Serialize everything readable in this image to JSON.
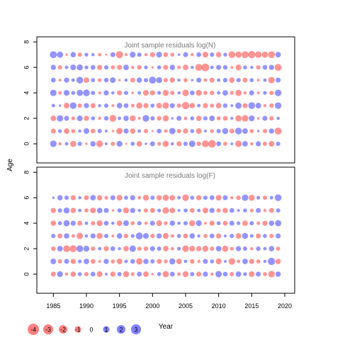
{
  "chart_data": [
    {
      "type": "scatter",
      "title": "Joint sample residuals log(N)",
      "xlabel": "Year",
      "ylabel": "Age",
      "xlim": [
        1982.5,
        2021.5
      ],
      "ylim": [
        -1.5,
        8.4
      ],
      "x_ticks": [
        "1985",
        "1990",
        "1995",
        "2000",
        "2005",
        "2010",
        "2015",
        "2020"
      ],
      "y_ticks": [
        "0",
        "2",
        "4",
        "6",
        "8"
      ],
      "x_range": [
        1985,
        2019
      ],
      "ages": [
        0,
        1,
        2,
        3,
        4,
        5,
        6,
        7
      ],
      "residuals": [
        [
          2.1,
          -0.5,
          0.6,
          -1.8,
          0.9,
          -0.3,
          1.4,
          -2.2,
          0.4,
          -0.9,
          1.7,
          -0.2,
          0.8,
          -1.5,
          0.3,
          1.2,
          -0.7,
          -1.9,
          0.5,
          -1.2,
          0.9,
          2.0,
          -1.0,
          -2.3,
          -2.8,
          1.1,
          -0.8,
          0.4,
          -2.1,
          1.5,
          -0.5,
          1.3,
          -0.9,
          -1.6,
          0.9
        ],
        [
          -1.2,
          0.7,
          -1.5,
          -0.8,
          0.5,
          1.6,
          -1.1,
          0.9,
          0.4,
          -0.3,
          -2.0,
          1.3,
          -1.4,
          0.6,
          -0.9,
          -0.2,
          1.1,
          -0.6,
          2.0,
          -0.9,
          -1.3,
          0.8,
          -1.6,
          0.4,
          -0.7,
          0.9,
          1.8,
          -1.2,
          2.2,
          1.5,
          -0.8,
          0.3,
          -0.9,
          1.3,
          -2.4
        ],
        [
          -1.5,
          2.0,
          1.2,
          -0.7,
          1.6,
          -1.3,
          0.8,
          -0.5,
          1.0,
          -2.3,
          0.6,
          1.4,
          -1.7,
          -0.4,
          2.2,
          0.9,
          -1.0,
          -1.8,
          0.3,
          1.2,
          -0.6,
          0.8,
          -1.4,
          0.9,
          1.5,
          -0.8,
          -1.1,
          0.4,
          -1.9,
          -2.1,
          1.7,
          -0.3,
          1.2,
          -0.9,
          0.5
        ],
        [
          0.6,
          0.3,
          -1.6,
          2.1,
          -0.9,
          1.3,
          -1.2,
          0.5,
          0.9,
          -0.4,
          1.5,
          1.1,
          -0.7,
          -1.8,
          -1.3,
          0.8,
          -1.5,
          -2.0,
          1.2,
          -0.9,
          -2.6,
          -1.4,
          0.6,
          -1.3,
          -0.8,
          -1.5,
          1.0,
          0.4,
          1.9,
          -1.2,
          2.3,
          1.6,
          -0.5,
          -1.0,
          2.1
        ],
        [
          2.0,
          -0.6,
          1.7,
          0.8,
          1.9,
          2.2,
          0.9,
          -0.4,
          1.3,
          0.5,
          -1.2,
          0.9,
          -0.3,
          0.6,
          -1.6,
          -1.3,
          0.7,
          -1.8,
          -0.9,
          0.5,
          -2.1,
          1.1,
          -1.7,
          -0.8,
          -1.0,
          0.6,
          1.5,
          -0.7,
          -1.9,
          -0.5,
          1.2,
          -0.4,
          0.7,
          -0.9,
          2.1
        ],
        [
          1.1,
          -0.4,
          1.3,
          0.6,
          2.2,
          -1.5,
          0.8,
          -0.7,
          1.0,
          1.6,
          -0.3,
          0.5,
          -1.1,
          1.4,
          0.9,
          2.4,
          1.8,
          -0.9,
          -1.3,
          0.5,
          -0.8,
          0.3,
          1.2,
          -0.6,
          -1.2,
          0.6,
          1.0,
          -1.5,
          0.9,
          -1.1,
          0.8,
          -0.4,
          0.6,
          -2.0,
          1.2
        ],
        [
          1.3,
          -0.9,
          0.6,
          1.6,
          1.8,
          0.7,
          1.1,
          -1.3,
          0.9,
          -0.8,
          -1.2,
          1.5,
          -0.5,
          -1.0,
          0.7,
          -0.3,
          0.8,
          -1.2,
          1.4,
          -0.6,
          -1.5,
          0.5,
          -2.4,
          -2.9,
          0.6,
          1.2,
          1.0,
          -0.4,
          -1.7,
          0.8,
          0.5,
          -0.9,
          1.1,
          1.3,
          -2.3
        ],
        [
          2.4,
          1.9,
          -0.3,
          1.4,
          -0.9,
          0.7,
          0.5,
          -0.6,
          -0.2,
          1.2,
          -2.5,
          -0.4,
          1.7,
          0.9,
          -0.5,
          -1.3,
          1.6,
          -1.1,
          -0.8,
          0.3,
          1.2,
          -0.5,
          1.1,
          -1.7,
          0.9,
          -1.4,
          0.7,
          -2.2,
          -1.9,
          -2.4,
          -2.6,
          -2.1,
          -1.8,
          -2.3,
          1.5
        ]
      ]
    },
    {
      "type": "scatter",
      "title": "Joint sample residuals log(F)",
      "xlabel": "Year",
      "ylabel": "Age",
      "xlim": [
        1982.5,
        2021.5
      ],
      "ylim": [
        -1.5,
        8.4
      ],
      "x_ticks": [
        "1985",
        "1990",
        "1995",
        "2000",
        "2005",
        "2010",
        "2015",
        "2020"
      ],
      "y_ticks": [
        "0",
        "2",
        "4",
        "6",
        "8"
      ],
      "x_range": [
        1985,
        2019
      ],
      "ages": [
        0,
        1,
        2,
        3,
        4,
        5,
        6
      ],
      "residuals": [
        [
          -1.2,
          1.7,
          -0.5,
          -1.4,
          0.8,
          -0.9,
          1.1,
          -1.6,
          0.4,
          -1.3,
          0.9,
          -1.8,
          -0.7,
          1.2,
          -1.5,
          -0.3,
          0.8,
          -1.9,
          1.1,
          -0.6,
          -1.7,
          0.9,
          -1.2,
          1.3,
          -0.5,
          2.0,
          1.1,
          -0.9,
          1.5,
          0.7,
          -1.6,
          1.2,
          -0.8,
          -2.1,
          1.4
        ],
        [
          1.6,
          -0.9,
          1.2,
          -1.3,
          0.7,
          1.5,
          -1.1,
          -0.4,
          1.3,
          -0.8,
          -1.6,
          0.6,
          1.1,
          -2.0,
          1.4,
          0.9,
          -1.2,
          -0.7,
          1.8,
          -1.5,
          0.6,
          -1.0,
          -0.5,
          1.2,
          0.8,
          -1.7,
          0.4,
          -2.1,
          -0.6,
          1.5,
          -1.3,
          -0.8,
          0.5,
          2.6,
          -1.4
        ],
        [
          -1.0,
          1.5,
          -2.3,
          -2.4,
          2.2,
          1.7,
          -0.9,
          0.6,
          -1.3,
          1.1,
          0.5,
          -1.4,
          2.0,
          -0.8,
          -1.0,
          1.2,
          0.9,
          -1.5,
          -0.6,
          0.7,
          -2.1,
          -1.6,
          -1.3,
          -1.8,
          -0.9,
          1.5,
          -1.9,
          -0.7,
          1.3,
          0.9,
          -0.5,
          1.0,
          0.6,
          1.4,
          -0.8
        ],
        [
          0.9,
          -1.2,
          1.4,
          -0.6,
          -2.0,
          0.5,
          1.3,
          -1.8,
          0.9,
          -0.4,
          1.5,
          -1.0,
          0.7,
          2.4,
          1.6,
          -0.9,
          1.3,
          -1.7,
          -0.6,
          0.8,
          -1.1,
          1.4,
          0.5,
          -0.8,
          1.1,
          -1.3,
          0.4,
          0.9,
          -1.5,
          1.7,
          0.6,
          -1.2,
          0.8,
          -0.9,
          1.3
        ],
        [
          -1.4,
          0.8,
          1.9,
          1.3,
          -1.2,
          0.6,
          -0.9,
          -1.7,
          1.1,
          0.5,
          -1.5,
          1.6,
          -0.8,
          0.9,
          -0.5,
          1.2,
          -1.6,
          -0.7,
          1.4,
          0.5,
          0.9,
          -1.8,
          1.7,
          -0.4,
          -1.3,
          0.8,
          -1.1,
          1.2,
          0.7,
          -1.5,
          0.9,
          -0.6,
          -1.3,
          1.4,
          1.9
        ],
        [
          -1.3,
          0.9,
          1.8,
          -1.4,
          0.6,
          -0.8,
          -1.6,
          1.5,
          1.2,
          -0.3,
          0.9,
          -1.7,
          1.3,
          0.5,
          -0.9,
          -1.2,
          0.7,
          -2.0,
          -1.5,
          0.4,
          0.8,
          -1.1,
          0.6,
          -1.6,
          1.3,
          -0.9,
          -1.4,
          1.1,
          0.4,
          0.8,
          -0.7,
          1.2,
          -0.5,
          -1.2,
          0.9
        ],
        [
          0.3,
          1.4,
          0.9,
          -1.2,
          0.5,
          -1.1,
          1.5,
          -1.4,
          -0.7,
          1.2,
          -1.6,
          0.8,
          1.3,
          -0.6,
          -1.7,
          0.9,
          -1.4,
          -1.9,
          -1.5,
          0.6,
          -2.1,
          0.8,
          -1.3,
          0.9,
          1.1,
          -1.6,
          1.2,
          -0.5,
          -1.0,
          2.0,
          -1.8,
          0.7,
          -0.9,
          0.6,
          2.2
        ]
      ]
    }
  ],
  "legend": {
    "items": [
      "-4",
      "-3",
      "-2",
      "-1",
      "0",
      "1",
      "2",
      "3"
    ],
    "values": [
      -4,
      -3,
      -2,
      -1,
      0,
      1,
      2,
      3
    ],
    "negative_color": "#ff6b6b",
    "positive_color": "#6b6bff"
  },
  "style": {
    "negative_color": "#ff4d4d",
    "positive_color": "#4d4dff",
    "opacity": 0.6
  }
}
